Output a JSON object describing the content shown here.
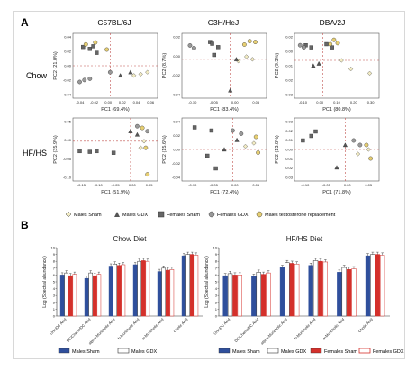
{
  "panel_a": {
    "label": "A",
    "strains": [
      "C57BL/6J",
      "C3H/HeJ",
      "DBA/2J"
    ],
    "row_labels": [
      "Chow",
      "HF/HS"
    ],
    "legend": [
      {
        "label": "Males Sham",
        "marker": "diamond",
        "fill": "#f3ecc3"
      },
      {
        "label": "Males GDX",
        "marker": "triangle",
        "fill": "#555555"
      },
      {
        "label": "Females Sham",
        "marker": "square",
        "fill": "#666666"
      },
      {
        "label": "Females GDX",
        "marker": "circle",
        "fill": "#999999"
      },
      {
        "label": "Males testosterone replacement",
        "marker": "circle",
        "fill": "#e7cf72"
      }
    ]
  },
  "panel_b": {
    "label": "B"
  },
  "chart_data": [
    {
      "type": "scatter",
      "title": "C57BL/6J",
      "row": "Chow",
      "xlabel": "PC1 (69.4%)",
      "ylabel": "PC2 (21.0%)",
      "xticks": [
        "-0.04",
        "-0.02",
        "0.00",
        "0.02",
        "0.04",
        "0.06"
      ],
      "yticks": [
        "0.04",
        "0.02",
        "0.00",
        "-0.02",
        "-0.04"
      ],
      "xlim": [
        -0.055,
        0.07
      ],
      "ylim": [
        -0.05,
        0.05
      ],
      "points": [
        {
          "g": "MS",
          "x": 0.055,
          "y": -0.01
        },
        {
          "g": "MS",
          "x": 0.045,
          "y": -0.013
        },
        {
          "g": "MS",
          "x": 0.035,
          "y": -0.015
        },
        {
          "g": "MG",
          "x": 0.015,
          "y": -0.015
        },
        {
          "g": "MG",
          "x": 0.03,
          "y": -0.01
        },
        {
          "g": "FS",
          "x": -0.04,
          "y": 0.029
        },
        {
          "g": "FS",
          "x": -0.03,
          "y": 0.026
        },
        {
          "g": "FS",
          "x": -0.025,
          "y": 0.03
        },
        {
          "g": "FS",
          "x": -0.02,
          "y": 0.02
        },
        {
          "g": "FG",
          "x": -0.045,
          "y": -0.025
        },
        {
          "g": "FG",
          "x": -0.038,
          "y": -0.022
        },
        {
          "g": "FG",
          "x": -0.03,
          "y": -0.02
        },
        {
          "g": "FG",
          "x": 0.0,
          "y": -0.01
        },
        {
          "g": "MT",
          "x": -0.036,
          "y": 0.033
        },
        {
          "g": "MT",
          "x": -0.022,
          "y": 0.036
        },
        {
          "g": "MT",
          "x": -0.005,
          "y": 0.025
        }
      ]
    },
    {
      "type": "scatter",
      "title": "C3H/HeJ",
      "row": "Chow",
      "xlabel": "PC1 (83.4%)",
      "ylabel": "PC2 (8.7%)",
      "xticks": [
        "-0.10",
        "-0.05",
        "0.00",
        "0.05"
      ],
      "yticks": [
        "0.02",
        "0.00",
        "-0.02",
        "-0.04"
      ],
      "xlim": [
        -0.12,
        0.09
      ],
      "ylim": [
        -0.045,
        0.03
      ],
      "points": [
        {
          "g": "MS",
          "x": 0.055,
          "y": 0.0
        },
        {
          "g": "MS",
          "x": 0.04,
          "y": 0.003
        },
        {
          "g": "MS",
          "x": 0.02,
          "y": -0.002
        },
        {
          "g": "MG",
          "x": 0.0,
          "y": -0.036
        },
        {
          "g": "MG",
          "x": 0.015,
          "y": 0.0
        },
        {
          "g": "FS",
          "x": -0.05,
          "y": 0.02
        },
        {
          "g": "FS",
          "x": -0.045,
          "y": 0.018
        },
        {
          "g": "FS",
          "x": -0.03,
          "y": 0.014
        },
        {
          "g": "FS",
          "x": -0.04,
          "y": 0.005
        },
        {
          "g": "FG",
          "x": -0.1,
          "y": 0.016
        },
        {
          "g": "FG",
          "x": -0.09,
          "y": 0.013
        },
        {
          "g": "MT",
          "x": 0.048,
          "y": 0.021
        },
        {
          "g": "MT",
          "x": 0.062,
          "y": 0.02
        },
        {
          "g": "MT",
          "x": 0.035,
          "y": 0.017
        }
      ]
    },
    {
      "type": "scatter",
      "title": "DBA/2J",
      "row": "Chow",
      "xlabel": "PC1 (80.8%)",
      "ylabel": "PC2 (9.3%)",
      "xticks": [
        "-0.10",
        "0.00",
        "0.10",
        "0.20",
        "0.30"
      ],
      "yticks": [
        "0.02",
        "0.00",
        "-0.01",
        "-0.02",
        "-0.03"
      ],
      "xlim": [
        -0.15,
        0.3
      ],
      "ylim": [
        -0.035,
        0.025
      ],
      "points": [
        {
          "g": "MS",
          "x": 0.25,
          "y": -0.012
        },
        {
          "g": "MS",
          "x": 0.15,
          "y": -0.008
        },
        {
          "g": "MS",
          "x": 0.1,
          "y": 0.0
        },
        {
          "g": "MG",
          "x": -0.05,
          "y": -0.005
        },
        {
          "g": "MG",
          "x": -0.02,
          "y": -0.003
        },
        {
          "g": "FS",
          "x": -0.09,
          "y": 0.014
        },
        {
          "g": "FS",
          "x": -0.06,
          "y": 0.012
        },
        {
          "g": "FS",
          "x": 0.02,
          "y": 0.015
        },
        {
          "g": "FS",
          "x": 0.05,
          "y": 0.012
        },
        {
          "g": "FG",
          "x": -0.12,
          "y": 0.014
        },
        {
          "g": "FG",
          "x": -0.1,
          "y": 0.012
        },
        {
          "g": "MT",
          "x": 0.06,
          "y": 0.019
        },
        {
          "g": "MT",
          "x": 0.08,
          "y": 0.016
        },
        {
          "g": "MT",
          "x": 0.04,
          "y": 0.015
        }
      ]
    },
    {
      "type": "scatter",
      "title": "C57BL/6J",
      "row": "HF/HS",
      "xlabel": "PC1 (51.9%)",
      "ylabel": "PC2 (35.9%)",
      "xticks": [
        "-0.15",
        "-0.10",
        "-0.05",
        "0.00",
        "0.05"
      ],
      "yticks": [
        "0.05",
        "0.00",
        "-0.05",
        "-0.10"
      ],
      "xlim": [
        -0.17,
        0.08
      ],
      "ylim": [
        -0.12,
        0.07
      ],
      "points": [
        {
          "g": "MS",
          "x": 0.04,
          "y": 0.0
        },
        {
          "g": "MS",
          "x": 0.03,
          "y": -0.02
        },
        {
          "g": "MG",
          "x": 0.0,
          "y": 0.03
        },
        {
          "g": "MG",
          "x": 0.02,
          "y": 0.02
        },
        {
          "g": "FS",
          "x": -0.15,
          "y": -0.03
        },
        {
          "g": "FS",
          "x": -0.1,
          "y": -0.03
        },
        {
          "g": "FS",
          "x": -0.05,
          "y": -0.035
        },
        {
          "g": "FS",
          "x": -0.12,
          "y": -0.032
        },
        {
          "g": "FG",
          "x": 0.02,
          "y": 0.045
        },
        {
          "g": "FG",
          "x": 0.05,
          "y": 0.03
        },
        {
          "g": "MT",
          "x": 0.035,
          "y": 0.04
        },
        {
          "g": "MT",
          "x": 0.045,
          "y": -0.02
        },
        {
          "g": "MT",
          "x": 0.05,
          "y": -0.1
        }
      ]
    },
    {
      "type": "scatter",
      "title": "C3H/HeJ",
      "row": "HF/HS",
      "xlabel": "PC1 (72.4%)",
      "ylabel": "PC2 (15.6%)",
      "xticks": [
        "-0.10",
        "-0.05",
        "0.00",
        "0.05"
      ],
      "yticks": [
        "0.04",
        "0.02",
        "0.00",
        "-0.02",
        "-0.04"
      ],
      "xlim": [
        -0.12,
        0.08
      ],
      "ylim": [
        -0.05,
        0.05
      ],
      "points": [
        {
          "g": "MS",
          "x": 0.05,
          "y": 0.01
        },
        {
          "g": "MS",
          "x": 0.03,
          "y": 0.005
        },
        {
          "g": "MG",
          "x": 0.01,
          "y": 0.015
        },
        {
          "g": "MG",
          "x": -0.02,
          "y": 0.0
        },
        {
          "g": "FS",
          "x": -0.09,
          "y": 0.035
        },
        {
          "g": "FS",
          "x": -0.05,
          "y": 0.03
        },
        {
          "g": "FS",
          "x": -0.04,
          "y": -0.03
        },
        {
          "g": "FS",
          "x": -0.06,
          "y": -0.01
        },
        {
          "g": "FG",
          "x": 0.0,
          "y": 0.03
        },
        {
          "g": "FG",
          "x": 0.02,
          "y": 0.025
        },
        {
          "g": "MT",
          "x": 0.055,
          "y": 0.02
        },
        {
          "g": "MT",
          "x": 0.06,
          "y": -0.005
        }
      ]
    },
    {
      "type": "scatter",
      "title": "DBA/2J",
      "row": "HF/HS",
      "xlabel": "PC1 (71.8%)",
      "ylabel": "PC2 (13.8%)",
      "xticks": [
        "-0.10",
        "-0.05",
        "0.00",
        "0.05"
      ],
      "yticks": [
        "0.03",
        "0.02",
        "0.01",
        "0.00",
        "-0.01",
        "-0.02",
        "-0.03"
      ],
      "xlim": [
        -0.12,
        0.08
      ],
      "ylim": [
        -0.035,
        0.035
      ],
      "points": [
        {
          "g": "MS",
          "x": 0.055,
          "y": 0.0
        },
        {
          "g": "MS",
          "x": 0.03,
          "y": -0.005
        },
        {
          "g": "MG",
          "x": -0.02,
          "y": -0.02
        },
        {
          "g": "MG",
          "x": 0.0,
          "y": 0.005
        },
        {
          "g": "FS",
          "x": -0.1,
          "y": 0.01
        },
        {
          "g": "FS",
          "x": -0.07,
          "y": 0.02
        },
        {
          "g": "FS",
          "x": -0.08,
          "y": 0.015
        },
        {
          "g": "FG",
          "x": 0.02,
          "y": 0.01
        },
        {
          "g": "FG",
          "x": 0.035,
          "y": 0.005
        },
        {
          "g": "MT",
          "x": 0.05,
          "y": 0.005
        },
        {
          "g": "MT",
          "x": 0.06,
          "y": -0.01
        }
      ]
    },
    {
      "type": "bar",
      "title": "Chow Diet",
      "ylabel": "Log (Spectral abundance)",
      "ylim": [
        0,
        10
      ],
      "yticks": [
        "10",
        "9",
        "8",
        "7",
        "6",
        "5",
        "4",
        "3",
        "2",
        "1",
        "0"
      ],
      "categories": [
        "UrsoDC Acid",
        "DC/Cheno/DC Acid",
        "alpha-Muricholic Acid",
        "b-Muricholic Acid",
        "w-Muricholic Acid",
        "Cholic Acid"
      ],
      "series": [
        {
          "name": "Males Sham",
          "color": "#2f4f9c",
          "values": [
            6.0,
            5.5,
            7.3,
            7.5,
            6.5,
            8.8
          ]
        },
        {
          "name": "Males GDX",
          "color": "#ffffff",
          "values": [
            6.3,
            6.3,
            7.6,
            8.0,
            7.0,
            9.0
          ]
        },
        {
          "name": "Females Sham",
          "color": "#d4302b",
          "values": [
            5.9,
            5.9,
            7.4,
            8.1,
            6.7,
            9.0
          ]
        },
        {
          "name": "Females GDX",
          "color": "#ffffff",
          "values": [
            6.1,
            6.1,
            7.5,
            8.0,
            6.8,
            8.9
          ]
        }
      ]
    },
    {
      "type": "bar",
      "title": "HF/HS Diet",
      "ylabel": "Log (Spectral abundance)",
      "ylim": [
        0,
        10
      ],
      "yticks": [
        "10",
        "9",
        "8",
        "7",
        "6",
        "5",
        "4",
        "3",
        "2",
        "1",
        "0"
      ],
      "categories": [
        "UrsoDC Acid",
        "DC/Cheno/DC Acid",
        "alpha-Muricholic Acid",
        "b-Muricholic Acid",
        "w-Muricholic Acid",
        "Cholic Acid"
      ],
      "series": [
        {
          "name": "Males Sham",
          "color": "#2f4f9c",
          "values": [
            5.9,
            5.8,
            7.1,
            7.4,
            6.4,
            8.8
          ]
        },
        {
          "name": "Males GDX",
          "color": "#ffffff",
          "values": [
            6.2,
            6.4,
            7.8,
            8.1,
            7.1,
            9.0
          ]
        },
        {
          "name": "Females Sham",
          "color": "#d4302b",
          "values": [
            6.0,
            6.1,
            7.7,
            8.0,
            6.8,
            9.0
          ]
        },
        {
          "name": "Females GDX",
          "color": "#ffffff",
          "values": [
            6.0,
            6.3,
            7.6,
            7.9,
            6.9,
            8.9
          ]
        }
      ]
    }
  ]
}
